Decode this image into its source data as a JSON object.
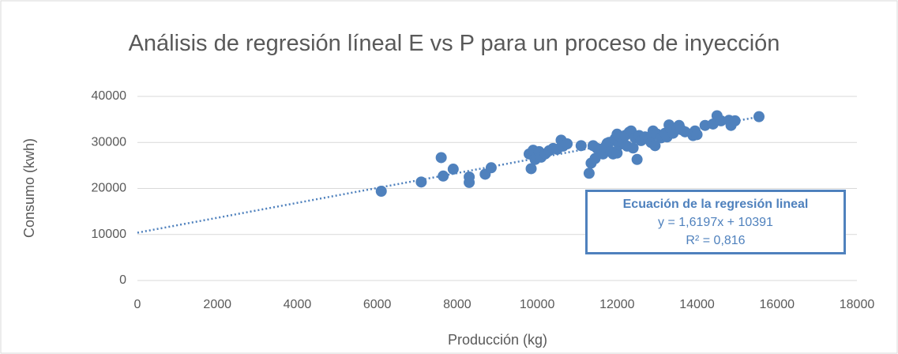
{
  "chart_data": {
    "type": "scatter",
    "title": "Análisis de regresión líneal E vs P para un proceso de inyección",
    "x_label": "Producción (kg)",
    "y_label": "Consumo (kwh)",
    "annotation": {
      "title": "Ecuación de la regresión lineal",
      "equation": "y = 1,6197x + 10391",
      "r2": "R² = 0,816"
    },
    "trendline": {
      "slope": 1.6197,
      "intercept": 10391,
      "color": "#4f81bd"
    },
    "color": "#4f81bd",
    "grid": true,
    "xlim": [
      0,
      18000
    ],
    "xticks": [
      0,
      2000,
      4000,
      6000,
      8000,
      10000,
      12000,
      14000,
      16000,
      18000
    ],
    "ylim": [
      0,
      40000
    ],
    "yticks": [
      0,
      10000,
      20000,
      30000,
      40000
    ],
    "x": [
      6100,
      7100,
      7600,
      7650,
      7900,
      8300,
      8300,
      8700,
      8850,
      9800,
      9850,
      9900,
      9950,
      10000,
      10050,
      10100,
      10200,
      10300,
      10400,
      10500,
      10600,
      10650,
      10750,
      11100,
      11300,
      11350,
      11400,
      11450,
      11500,
      11600,
      11650,
      11700,
      11750,
      11800,
      11850,
      11900,
      11950,
      12000,
      12000,
      12050,
      12100,
      12150,
      12200,
      12250,
      12300,
      12350,
      12400,
      12450,
      12500,
      12550,
      12600,
      12700,
      12800,
      12850,
      12900,
      12950,
      13000,
      13100,
      13200,
      13250,
      13300,
      13350,
      13400,
      13500,
      13550,
      13600,
      13700,
      13900,
      13950,
      14000,
      14200,
      14400,
      14500,
      14600,
      14800,
      14850,
      14950,
      15550
    ],
    "y": [
      19400,
      21400,
      26700,
      22700,
      24200,
      22500,
      21300,
      23100,
      24500,
      27500,
      24300,
      28300,
      26300,
      27000,
      28000,
      26800,
      27500,
      28200,
      28700,
      28500,
      30500,
      29200,
      29700,
      29300,
      23300,
      25500,
      29300,
      26500,
      28700,
      28500,
      27500,
      29000,
      29800,
      30000,
      28000,
      27500,
      30800,
      31800,
      27700,
      29500,
      31000,
      30000,
      31500,
      29200,
      32200,
      32500,
      28800,
      31000,
      26300,
      31500,
      30400,
      31200,
      30600,
      30000,
      32500,
      29300,
      31800,
      31000,
      32000,
      31200,
      33800,
      32800,
      32000,
      33000,
      33700,
      32800,
      32300,
      31500,
      32500,
      31700,
      33700,
      34000,
      35800,
      34700,
      34800,
      33700,
      34700,
      35600
    ]
  }
}
